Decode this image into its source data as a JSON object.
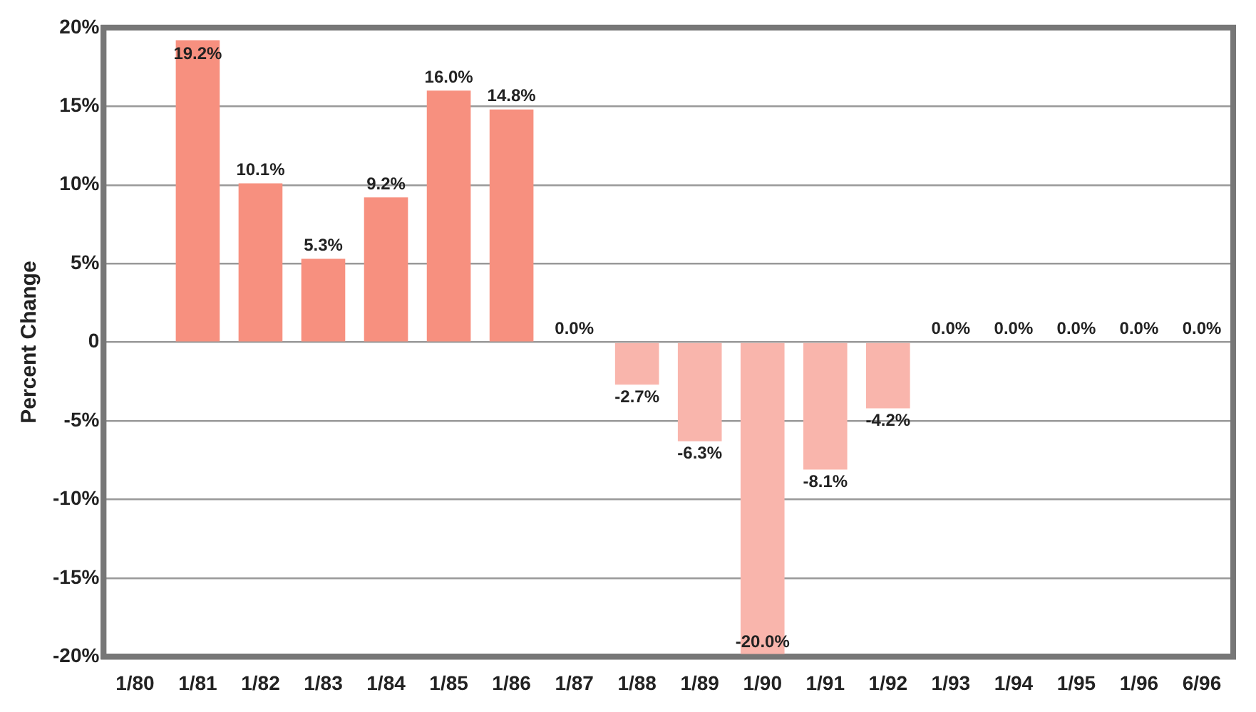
{
  "chart_data": {
    "type": "bar",
    "ylabel": "Percent Change",
    "categories": [
      "1/80",
      "1/81",
      "1/82",
      "1/83",
      "1/84",
      "1/85",
      "1/86",
      "1/87",
      "1/88",
      "1/89",
      "1/90",
      "1/91",
      "1/92",
      "1/93",
      "1/94",
      "1/95",
      "1/96",
      "6/96"
    ],
    "values": [
      null,
      19.2,
      10.1,
      5.3,
      9.2,
      16.0,
      14.8,
      0.0,
      -2.7,
      -6.3,
      -20.0,
      -8.1,
      -4.2,
      0.0,
      0.0,
      0.0,
      0.0,
      0.0
    ],
    "value_labels": [
      null,
      "19.2%",
      "10.1%",
      "5.3%",
      "9.2%",
      "16.0%",
      "14.8%",
      "0.0%",
      "-2.7%",
      "-6.3%",
      "-20.0%",
      "-8.1%",
      "-4.2%",
      "0.0%",
      "0.0%",
      "0.0%",
      "0.0%",
      "0.0%"
    ],
    "colors": [
      "#f7907f",
      "#f7907f",
      "#f7907f",
      "#f7907f",
      "#f7907f",
      "#f7907f",
      "#f7907f",
      "#f7907f",
      "#f9b5ac",
      "#f9b5ac",
      "#f9b5ac",
      "#f9b5ac",
      "#f9b5ac",
      "#f7907f",
      "#f7907f",
      "#f7907f",
      "#f7907f",
      "#f7907f"
    ],
    "ylim": [
      -20,
      20
    ],
    "yticks": [
      {
        "value": -20,
        "label": "-20%"
      },
      {
        "value": -15,
        "label": "-15%"
      },
      {
        "value": -10,
        "label": "-10%"
      },
      {
        "value": -5,
        "label": "-5%"
      },
      0,
      {
        "value": 5,
        "label": "5%"
      },
      {
        "value": 10,
        "label": "10%"
      },
      {
        "value": 15,
        "label": "15%"
      },
      {
        "value": 20,
        "label": "20%"
      }
    ],
    "grid": "y",
    "legend": false
  }
}
